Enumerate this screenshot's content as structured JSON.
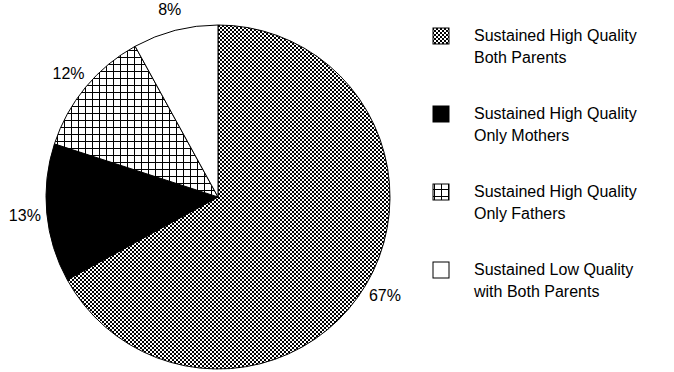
{
  "chart_data": {
    "type": "pie",
    "categories": [
      "Sustained High Quality\nBoth Parents",
      "Sustained High Quality\nOnly Mothers",
      "Sustained High Quality\nOnly Fathers",
      "Sustained Low Quality\nwith Both Parents"
    ],
    "values": [
      67,
      13,
      12,
      8
    ],
    "value_labels": [
      "67%",
      "13%",
      "12%",
      "8%"
    ],
    "colors": [
      "#000000",
      "#000000",
      "#000000",
      "#ffffff"
    ],
    "data_labels": true,
    "legend": "right"
  }
}
